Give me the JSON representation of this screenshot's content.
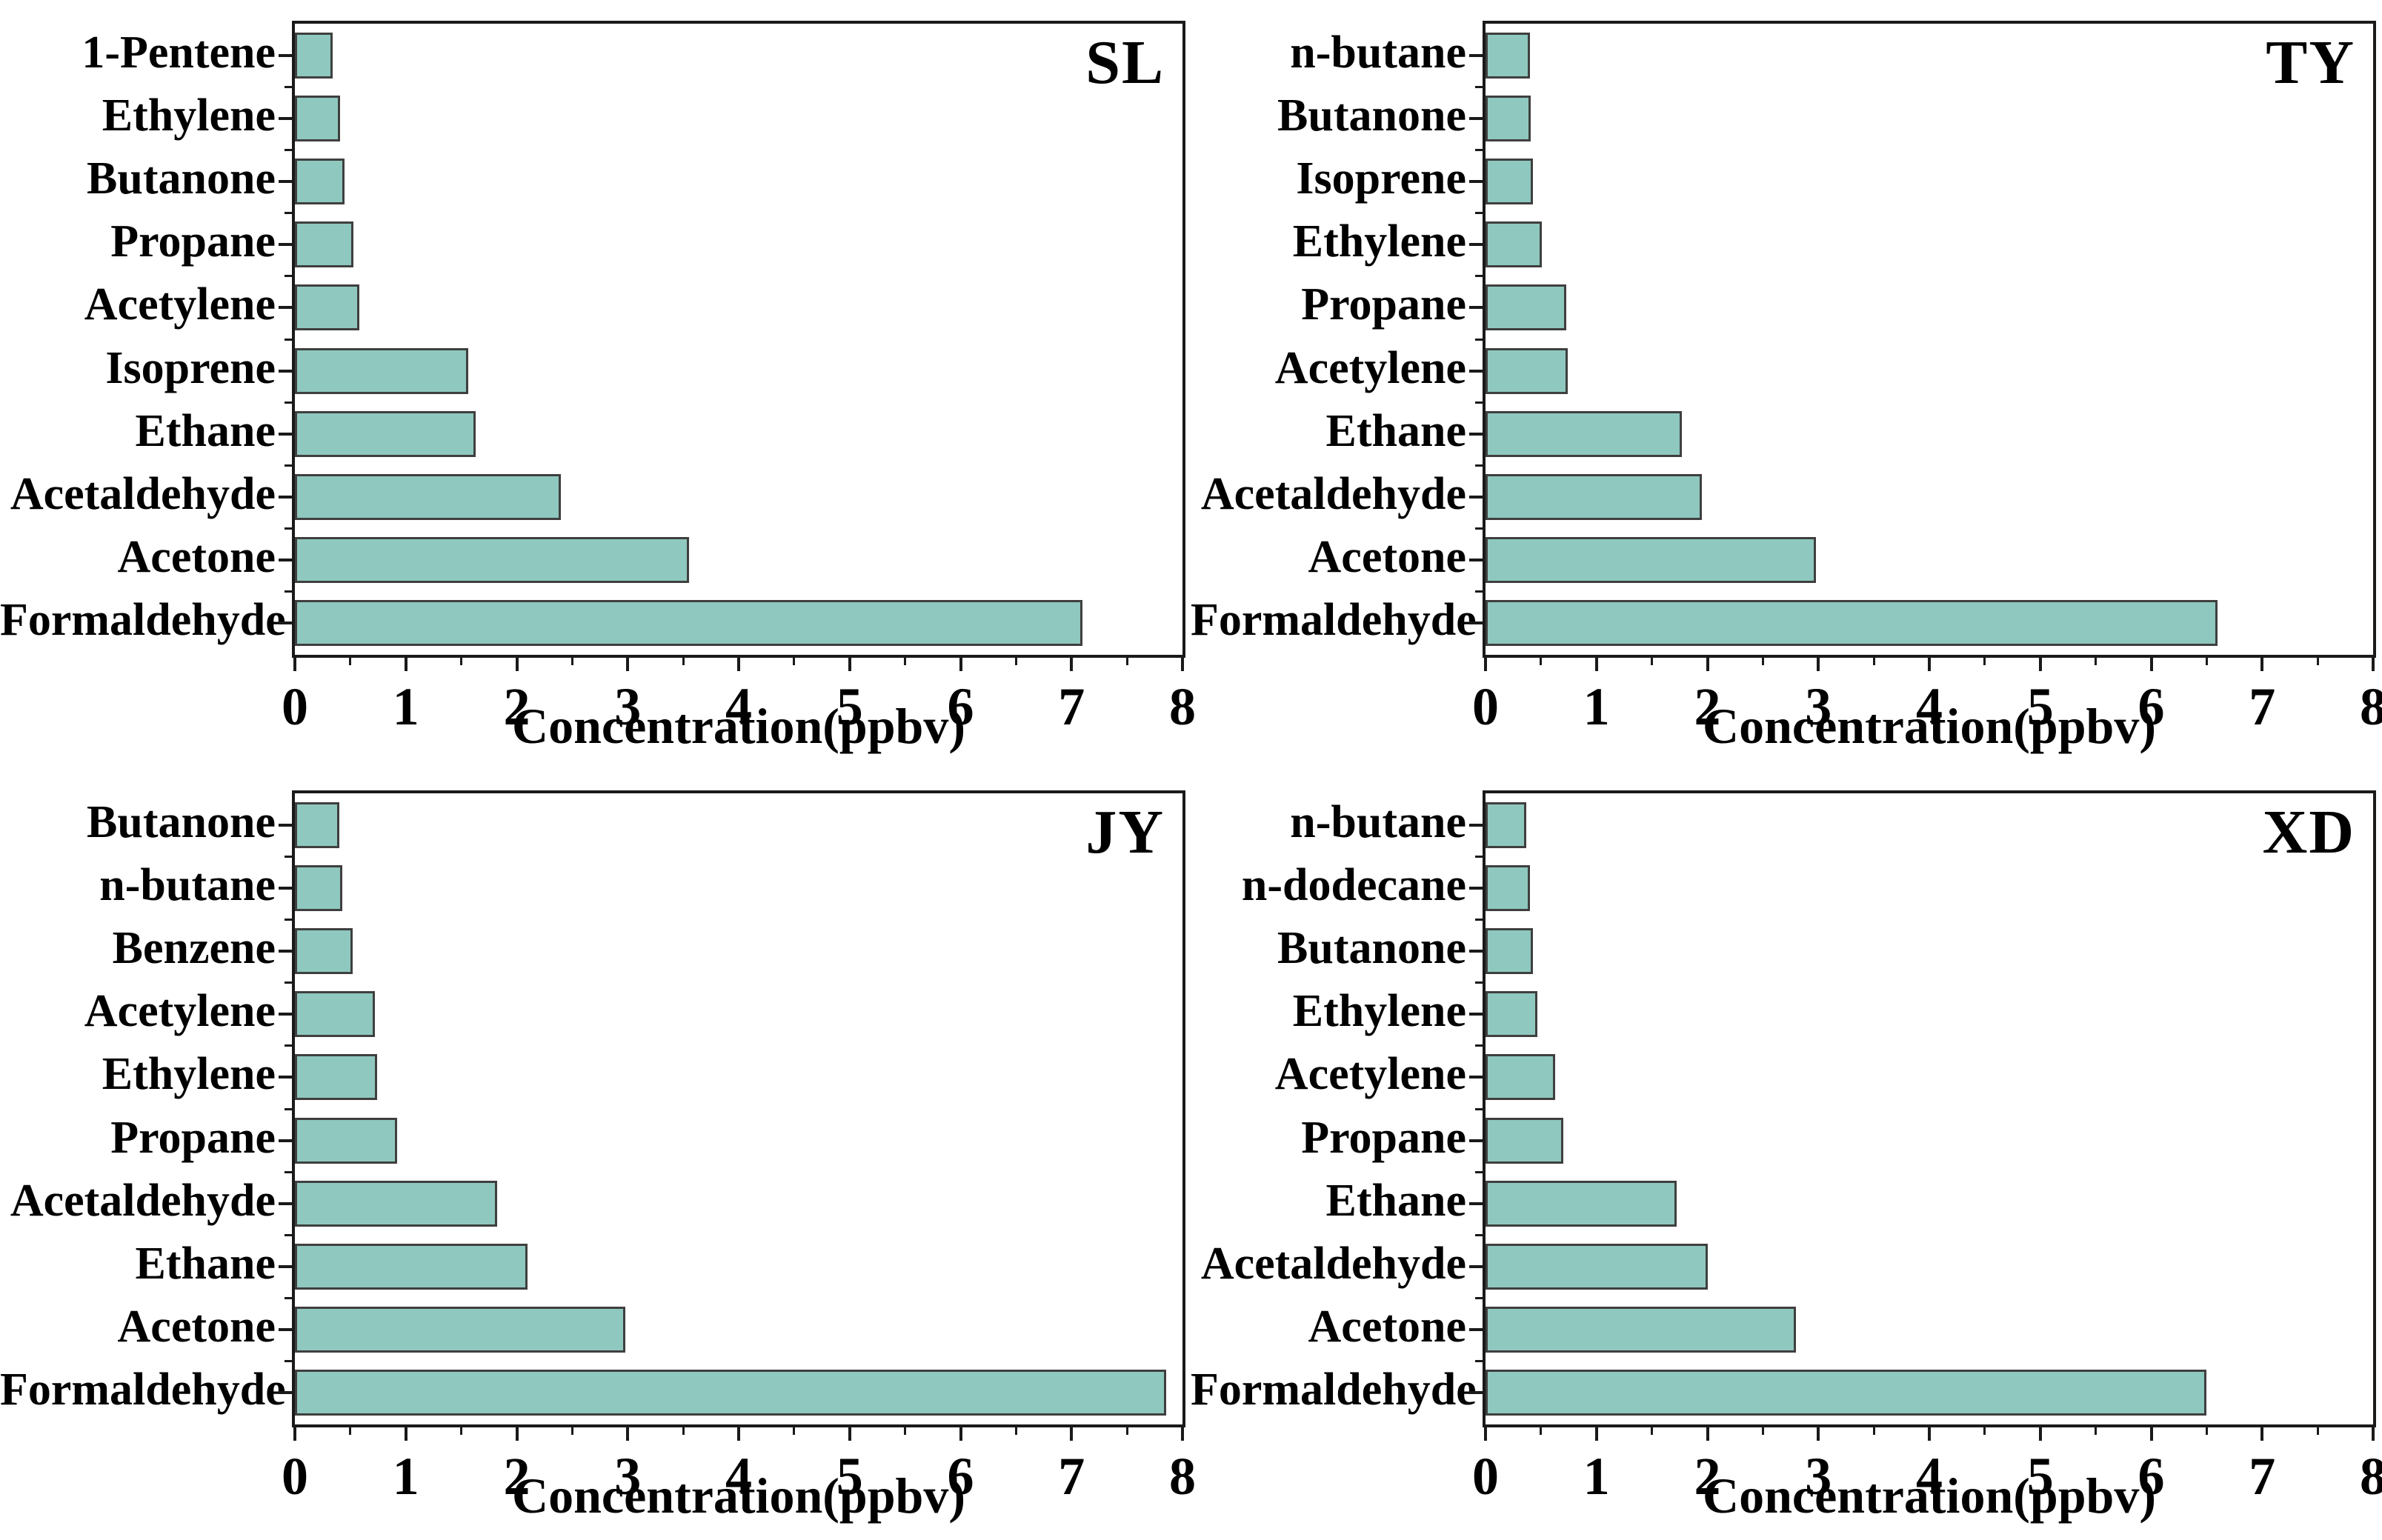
{
  "figure_title": "",
  "style": {
    "bar_fill": "#8fc8be",
    "bar_border": "#3f3f3f",
    "axis_color": "#1a1a1a",
    "text_color": "#000000",
    "background": "#ffffff"
  },
  "chart_data": [
    {
      "type": "bar",
      "orientation": "horizontal",
      "panel_label": "SL",
      "xlabel": "Concentration(ppbv)",
      "xlim": [
        0,
        8
      ],
      "x_ticks": [
        0,
        1,
        2,
        3,
        4,
        5,
        6,
        7,
        8
      ],
      "grid": false,
      "categories": [
        "1-Pentene",
        "Ethylene",
        "Butanone",
        "Propane",
        "Acetylene",
        "Isoprene",
        "Ethane",
        "Acetaldehyde",
        "Acetone",
        "Formaldehyde"
      ],
      "values": [
        0.34,
        0.41,
        0.45,
        0.53,
        0.58,
        1.56,
        1.63,
        2.4,
        3.55,
        7.1
      ]
    },
    {
      "type": "bar",
      "orientation": "horizontal",
      "panel_label": "TY",
      "xlabel": "Concentration(ppbv)",
      "xlim": [
        0,
        8
      ],
      "x_ticks": [
        0,
        1,
        2,
        3,
        4,
        5,
        6,
        7,
        8
      ],
      "grid": false,
      "categories": [
        "n-butane",
        "Butanone",
        "Isoprene",
        "Ethylene",
        "Propane",
        "Acetylene",
        "Ethane",
        "Acetaldehyde",
        "Acetone",
        "Formaldehyde"
      ],
      "values": [
        0.4,
        0.41,
        0.43,
        0.51,
        0.73,
        0.74,
        1.77,
        1.95,
        2.98,
        6.6
      ]
    },
    {
      "type": "bar",
      "orientation": "horizontal",
      "panel_label": "JY",
      "xlabel": "Concentration(ppbv)",
      "xlim": [
        0,
        8
      ],
      "x_ticks": [
        0,
        1,
        2,
        3,
        4,
        5,
        6,
        7,
        8
      ],
      "grid": false,
      "categories": [
        "Butanone",
        "n-butane",
        "Benzene",
        "Acetylene",
        "Ethylene",
        "Propane",
        "Acetaldehyde",
        "Ethane",
        "Acetone",
        "Formaldehyde"
      ],
      "values": [
        0.4,
        0.43,
        0.52,
        0.72,
        0.74,
        0.92,
        1.82,
        2.1,
        2.98,
        7.85
      ]
    },
    {
      "type": "bar",
      "orientation": "horizontal",
      "panel_label": "XD",
      "xlabel": "Concentration(ppbv)",
      "xlim": [
        0,
        8
      ],
      "x_ticks": [
        0,
        1,
        2,
        3,
        4,
        5,
        6,
        7,
        8
      ],
      "grid": false,
      "categories": [
        "n-butane",
        "n-dodecane",
        "Butanone",
        "Ethylene",
        "Acetylene",
        "Propane",
        "Ethane",
        "Acetaldehyde",
        "Acetone",
        "Formaldehyde"
      ],
      "values": [
        0.37,
        0.4,
        0.43,
        0.47,
        0.63,
        0.7,
        1.72,
        2.0,
        2.8,
        6.5
      ]
    }
  ]
}
